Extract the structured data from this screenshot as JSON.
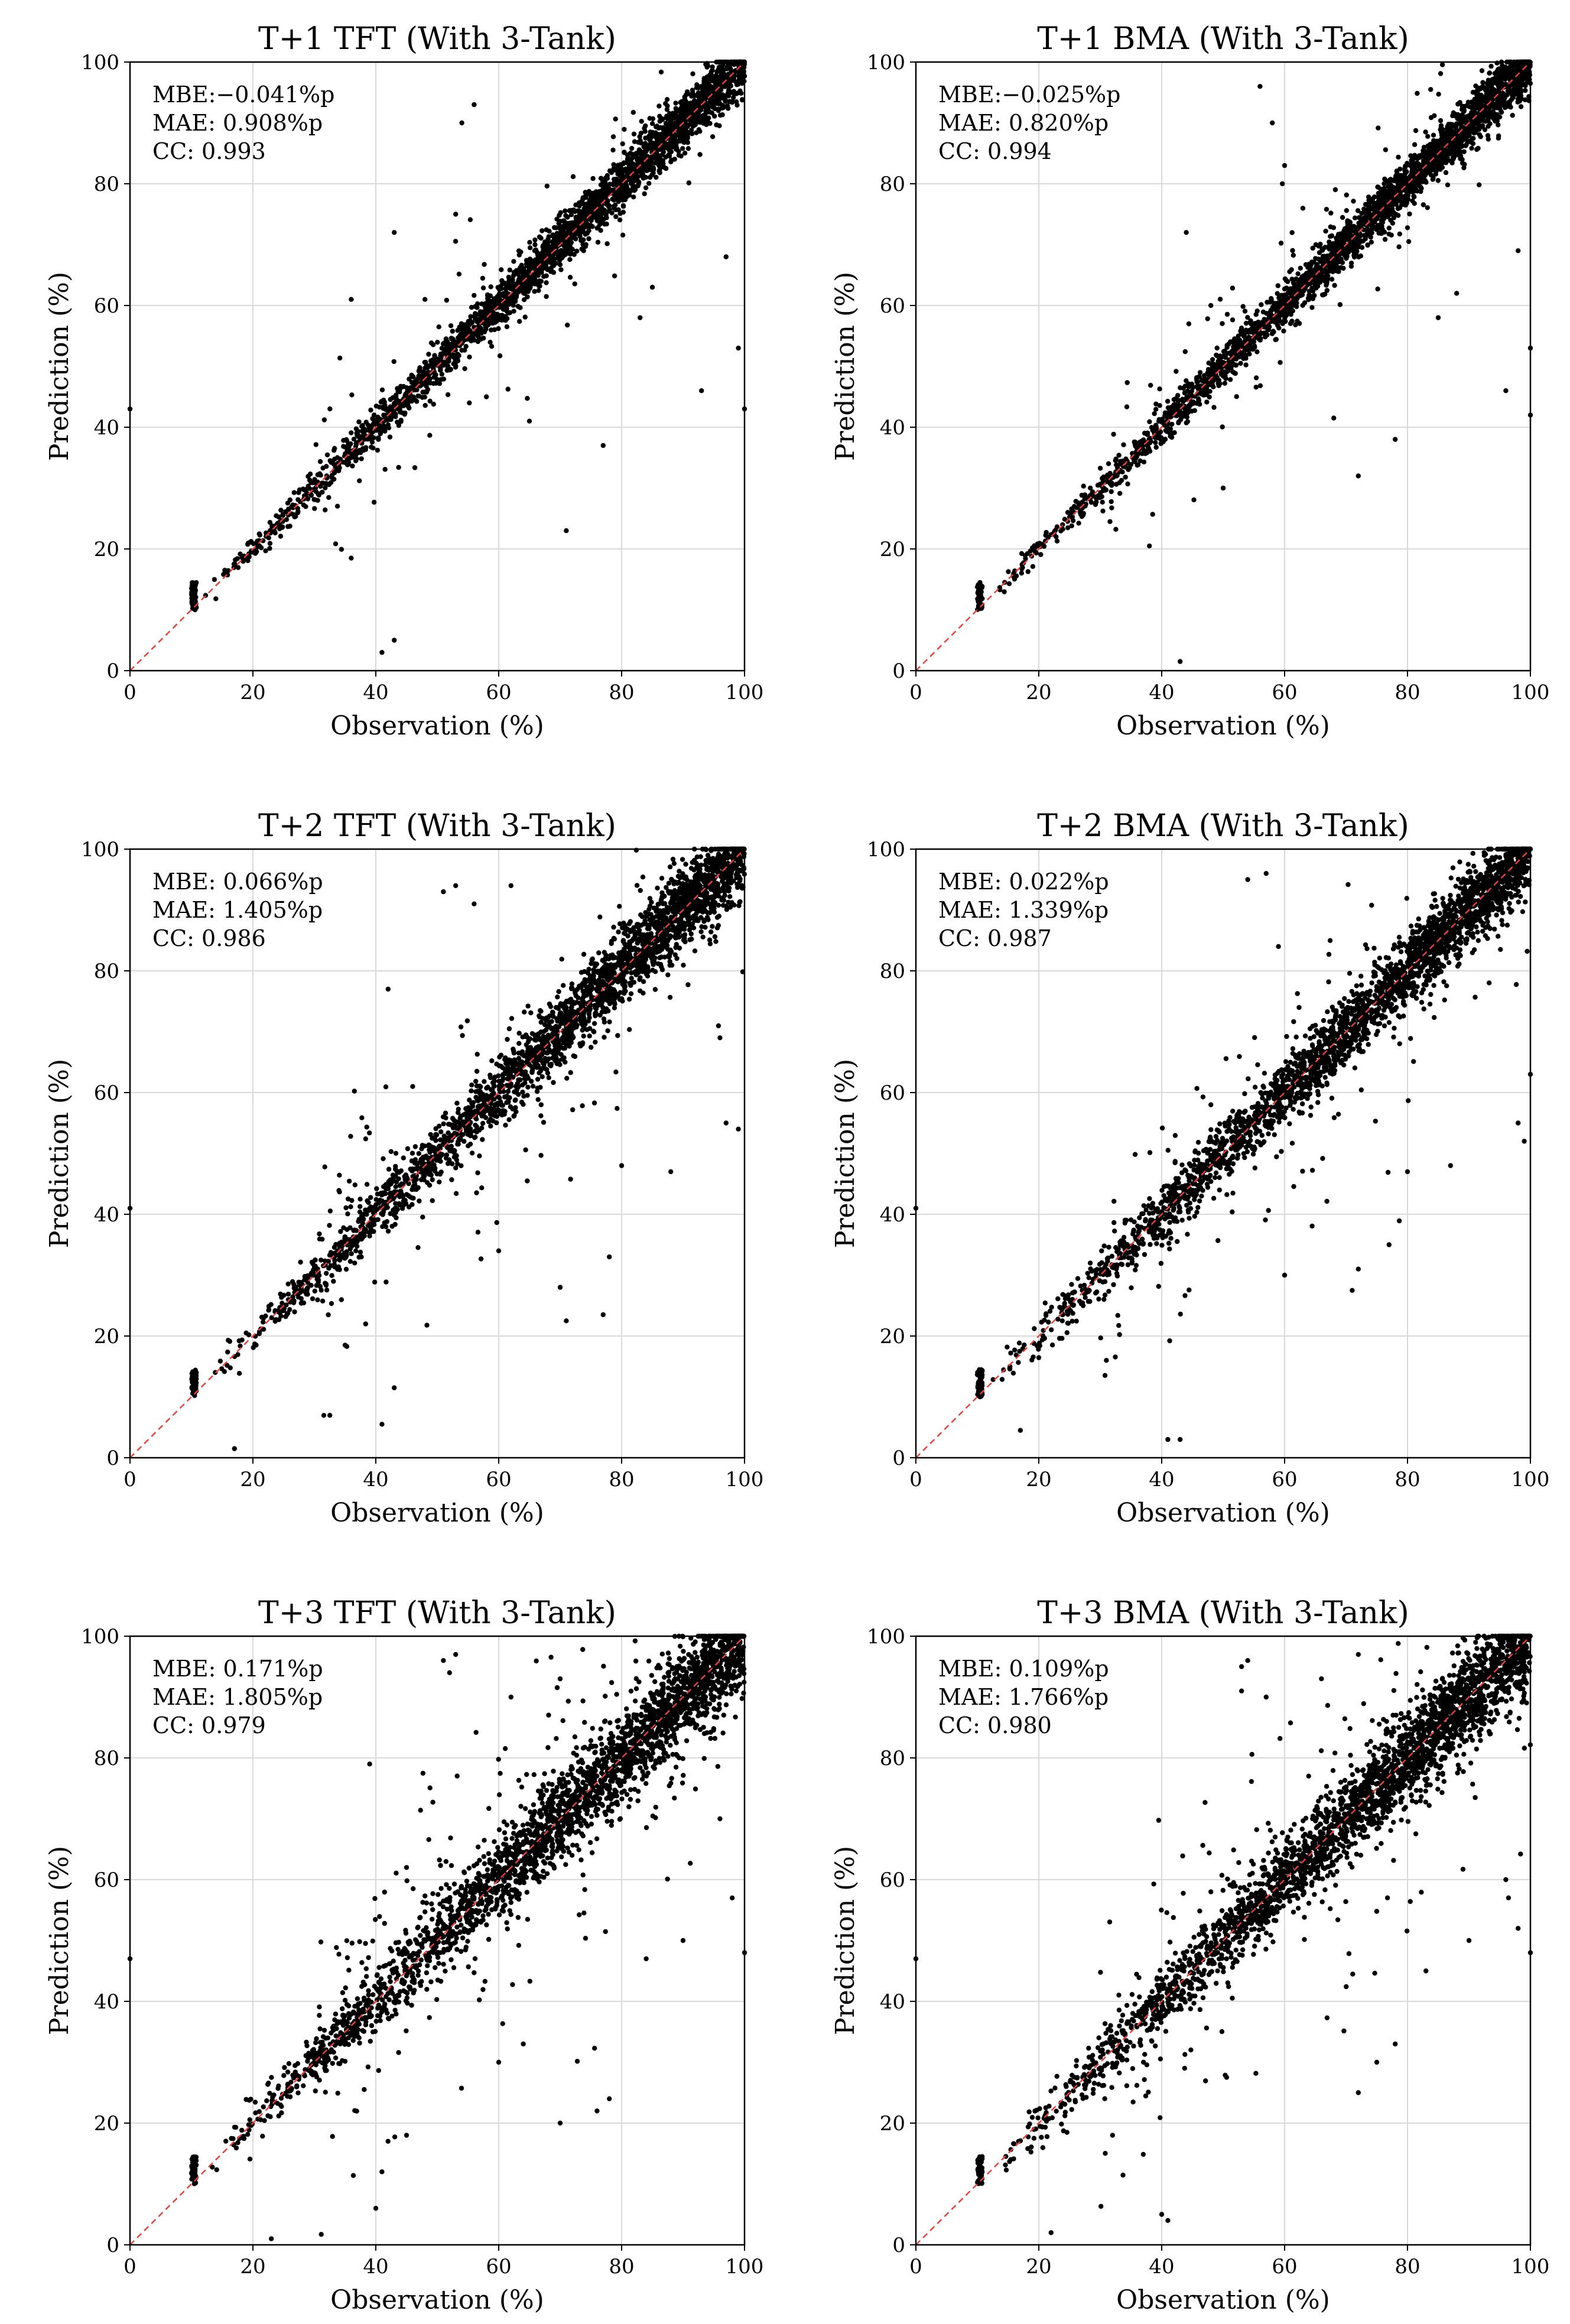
{
  "colors": {
    "points": "#000000",
    "reference_line": "#e8413c",
    "grid": "#d9d9d9",
    "frame": "#000000"
  },
  "chart_data": [
    {
      "type": "scatter",
      "title": "T+1 TFT (With 3-Tank)",
      "xlabel": "Observation (%)",
      "ylabel": "Prediction (%)",
      "xlim": [
        0,
        100
      ],
      "ylim": [
        0,
        100
      ],
      "xticks": [
        "0",
        "20",
        "40",
        "60",
        "80",
        "100"
      ],
      "yticks": [
        "0",
        "20",
        "40",
        "60",
        "80",
        "100"
      ],
      "grid": true,
      "reference_line": "y = x (red dashed)",
      "stats": [
        "MBE:−0.041%p",
        "MAE: 0.908%p",
        "CC: 0.993"
      ],
      "spread": 1.8,
      "outliers": [
        [
          43,
          5
        ],
        [
          41,
          3
        ],
        [
          36,
          18.5
        ],
        [
          71,
          23
        ],
        [
          77,
          37
        ],
        [
          65,
          41
        ],
        [
          58,
          45
        ],
        [
          36,
          61
        ],
        [
          54,
          90
        ],
        [
          56,
          93
        ],
        [
          93,
          46
        ],
        [
          99,
          53
        ],
        [
          97,
          68
        ],
        [
          83,
          58
        ],
        [
          85,
          63
        ],
        [
          43,
          72
        ],
        [
          100,
          43
        ],
        [
          0,
          43
        ],
        [
          53,
          75
        ],
        [
          48,
          61
        ]
      ]
    },
    {
      "type": "scatter",
      "title": "T+1 BMA (With 3-Tank)",
      "xlabel": "Observation (%)",
      "ylabel": "Prediction (%)",
      "xlim": [
        0,
        100
      ],
      "ylim": [
        0,
        100
      ],
      "xticks": [
        "0",
        "20",
        "40",
        "60",
        "80",
        "100"
      ],
      "yticks": [
        "0",
        "20",
        "40",
        "60",
        "80",
        "100"
      ],
      "grid": true,
      "reference_line": "y = x (red dashed)",
      "stats": [
        "MBE:−0.025%p",
        "MAE: 0.820%p",
        "CC: 0.994"
      ],
      "spread": 1.7,
      "outliers": [
        [
          43,
          1.5
        ],
        [
          38,
          20.5
        ],
        [
          72,
          32
        ],
        [
          78,
          38
        ],
        [
          68,
          41.5
        ],
        [
          56,
          96
        ],
        [
          58,
          90
        ],
        [
          96,
          46
        ],
        [
          100,
          53
        ],
        [
          98,
          69
        ],
        [
          85,
          58
        ],
        [
          88,
          62
        ],
        [
          44,
          72
        ],
        [
          60,
          83
        ],
        [
          100,
          42
        ],
        [
          48,
          60
        ],
        [
          50,
          30
        ]
      ]
    },
    {
      "type": "scatter",
      "title": "T+2 TFT (With 3-Tank)",
      "xlabel": "Observation (%)",
      "ylabel": "Prediction (%)",
      "xlim": [
        0,
        100
      ],
      "ylim": [
        0,
        100
      ],
      "xticks": [
        "0",
        "20",
        "40",
        "60",
        "80",
        "100"
      ],
      "yticks": [
        "0",
        "20",
        "40",
        "60",
        "80",
        "100"
      ],
      "grid": true,
      "reference_line": "y = x (red dashed)",
      "stats": [
        "MBE: 0.066%p",
        "MAE: 1.405%p",
        "CC: 0.986"
      ],
      "spread": 2.6,
      "outliers": [
        [
          17,
          1.5
        ],
        [
          41,
          5.5
        ],
        [
          43,
          11.5
        ],
        [
          35,
          18.5
        ],
        [
          71,
          22.5
        ],
        [
          77,
          23.5
        ],
        [
          70,
          28
        ],
        [
          78,
          33
        ],
        [
          51,
          93
        ],
        [
          53,
          94
        ],
        [
          56,
          91
        ],
        [
          62,
          94
        ],
        [
          42,
          77
        ],
        [
          99,
          54
        ],
        [
          97,
          55
        ],
        [
          96,
          69
        ],
        [
          88,
          47
        ],
        [
          80,
          48
        ],
        [
          0,
          41
        ],
        [
          46,
          61
        ],
        [
          60,
          34
        ]
      ]
    },
    {
      "type": "scatter",
      "title": "T+2 BMA (With 3-Tank)",
      "xlabel": "Observation (%)",
      "ylabel": "Prediction (%)",
      "xlim": [
        0,
        100
      ],
      "ylim": [
        0,
        100
      ],
      "xticks": [
        "0",
        "20",
        "40",
        "60",
        "80",
        "100"
      ],
      "yticks": [
        "0",
        "20",
        "40",
        "60",
        "80",
        "100"
      ],
      "grid": true,
      "reference_line": "y = x (red dashed)",
      "stats": [
        "MBE: 0.022%p",
        "MAE: 1.339%p",
        "CC: 0.987"
      ],
      "spread": 2.5,
      "outliers": [
        [
          17,
          4.5
        ],
        [
          41,
          3
        ],
        [
          43,
          3
        ],
        [
          31,
          16
        ],
        [
          71,
          27.5
        ],
        [
          72,
          31
        ],
        [
          77,
          35
        ],
        [
          54,
          95
        ],
        [
          57,
          96
        ],
        [
          59,
          84
        ],
        [
          99,
          52
        ],
        [
          98,
          55
        ],
        [
          100,
          63
        ],
        [
          87,
          48
        ],
        [
          80,
          47
        ],
        [
          48,
          58
        ],
        [
          0,
          41
        ],
        [
          60,
          30
        ]
      ]
    },
    {
      "type": "scatter",
      "title": "T+3 TFT (With 3-Tank)",
      "xlabel": "Observation (%)",
      "ylabel": "Prediction (%)",
      "xlim": [
        0,
        100
      ],
      "ylim": [
        0,
        100
      ],
      "xticks": [
        "0",
        "20",
        "40",
        "60",
        "80",
        "100"
      ],
      "yticks": [
        "0",
        "20",
        "40",
        "60",
        "80",
        "100"
      ],
      "grid": true,
      "reference_line": "y = x (red dashed)",
      "stats": [
        "MBE: 0.171%p",
        "MAE: 1.805%p",
        "CC: 0.979"
      ],
      "spread": 3.3,
      "outliers": [
        [
          23,
          1
        ],
        [
          40,
          6
        ],
        [
          41,
          12
        ],
        [
          45,
          18
        ],
        [
          70,
          20
        ],
        [
          76,
          22
        ],
        [
          78,
          24
        ],
        [
          51,
          96
        ],
        [
          53,
          97
        ],
        [
          52,
          94
        ],
        [
          39,
          79
        ],
        [
          100,
          48
        ],
        [
          98,
          57
        ],
        [
          96,
          70
        ],
        [
          90,
          50
        ],
        [
          84,
          47
        ],
        [
          64,
          33
        ],
        [
          60,
          30
        ],
        [
          0,
          47
        ],
        [
          45,
          62
        ],
        [
          62,
          90
        ],
        [
          70,
          93
        ]
      ]
    },
    {
      "type": "scatter",
      "title": "T+3 BMA (With 3-Tank)",
      "xlabel": "Observation (%)",
      "ylabel": "Prediction (%)",
      "xlim": [
        0,
        100
      ],
      "ylim": [
        0,
        100
      ],
      "xticks": [
        "0",
        "20",
        "40",
        "60",
        "80",
        "100"
      ],
      "yticks": [
        "0",
        "20",
        "40",
        "60",
        "80",
        "100"
      ],
      "grid": true,
      "reference_line": "y = x (red dashed)",
      "stats": [
        "MBE: 0.109%p",
        "MAE: 1.766%p",
        "CC: 0.980"
      ],
      "spread": 3.2,
      "outliers": [
        [
          22,
          2
        ],
        [
          40,
          5
        ],
        [
          41,
          4
        ],
        [
          32,
          18
        ],
        [
          72,
          25
        ],
        [
          75,
          30
        ],
        [
          78,
          33
        ],
        [
          53,
          95
        ],
        [
          54,
          96
        ],
        [
          53,
          91
        ],
        [
          57,
          90
        ],
        [
          100,
          48
        ],
        [
          98,
          52
        ],
        [
          96,
          60
        ],
        [
          90,
          50
        ],
        [
          83,
          45
        ],
        [
          48,
          58
        ],
        [
          0,
          47
        ],
        [
          66,
          93
        ],
        [
          72,
          97
        ]
      ]
    }
  ]
}
